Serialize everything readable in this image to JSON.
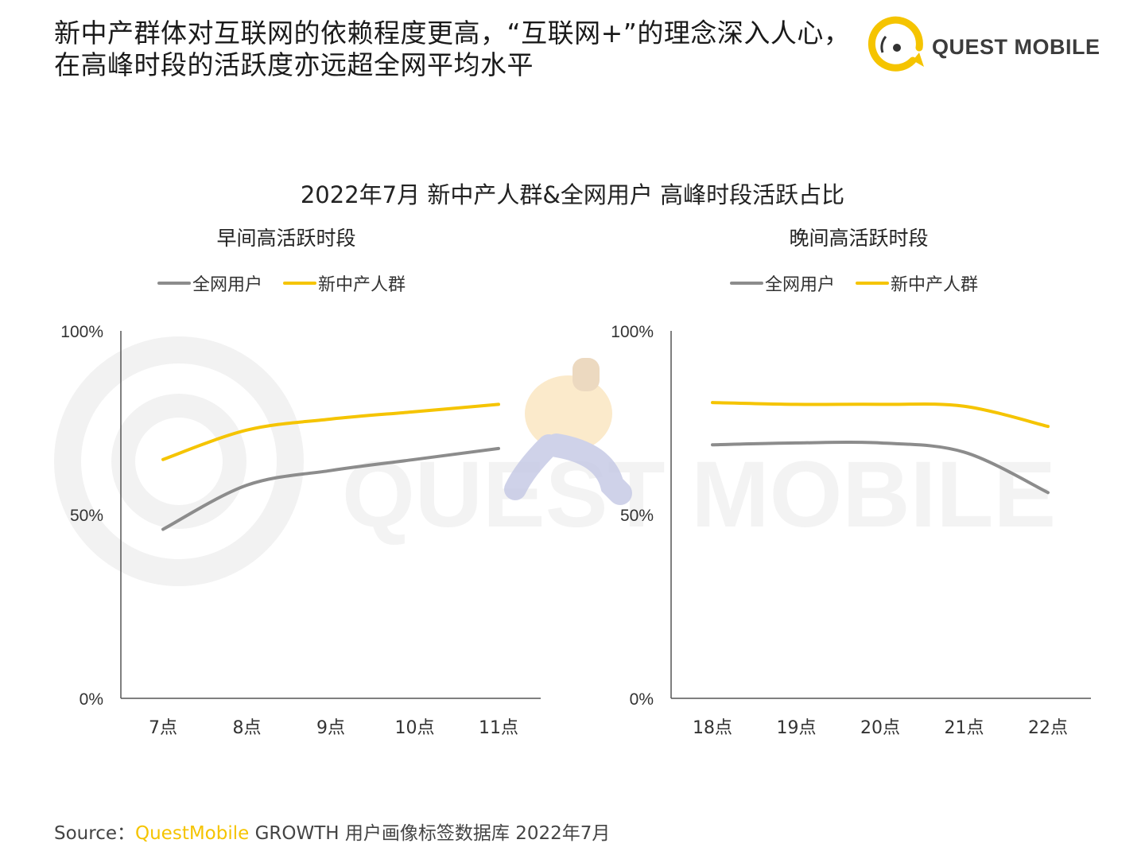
{
  "headline": {
    "line1": "新中产群体对互联网的依赖程度更高，“互联网+”的理念深入人心，",
    "line2": "在高峰时段的活跃度亦远超全网平均水平"
  },
  "brand": {
    "name": "QUEST MOBILE",
    "accent_color": "#f5c400"
  },
  "watermark": {
    "text": "QUEST MOBILE"
  },
  "chart_title": "2022年7月 新中产人群&全网用户 高峰时段活跃占比",
  "source": {
    "prefix": "Source：",
    "brand": "QuestMobile",
    "rest": " GROWTH 用户画像标签数据库 2022年7月"
  },
  "colors": {
    "all_users": "#8c8c8c",
    "new_middle_class": "#f5c400"
  },
  "chart_data": [
    {
      "type": "line",
      "title": "早间高活跃时段",
      "categories": [
        "7点",
        "8点",
        "9点",
        "10点",
        "11点"
      ],
      "ylim": [
        0,
        100
      ],
      "y_ticks": [
        "100%",
        "50%",
        "0%"
      ],
      "y_tick_values": [
        100,
        50,
        0
      ],
      "legend": "top",
      "grid": false,
      "series": [
        {
          "name": "全网用户",
          "values": [
            46,
            58,
            62,
            65,
            68
          ]
        },
        {
          "name": "新中产人群",
          "values": [
            65,
            73,
            76,
            78,
            80
          ]
        }
      ]
    },
    {
      "type": "line",
      "title": "晚间高活跃时段",
      "categories": [
        "18点",
        "19点",
        "20点",
        "21点",
        "22点"
      ],
      "ylim": [
        0,
        100
      ],
      "y_ticks": [
        "100%",
        "50%",
        "0%"
      ],
      "y_tick_values": [
        100,
        50,
        0
      ],
      "legend": "top",
      "grid": false,
      "series": [
        {
          "name": "全网用户",
          "values": [
            69,
            69.5,
            69.5,
            67,
            56
          ]
        },
        {
          "name": "新中产人群",
          "values": [
            80.5,
            80,
            80,
            79.5,
            74
          ]
        }
      ]
    }
  ]
}
